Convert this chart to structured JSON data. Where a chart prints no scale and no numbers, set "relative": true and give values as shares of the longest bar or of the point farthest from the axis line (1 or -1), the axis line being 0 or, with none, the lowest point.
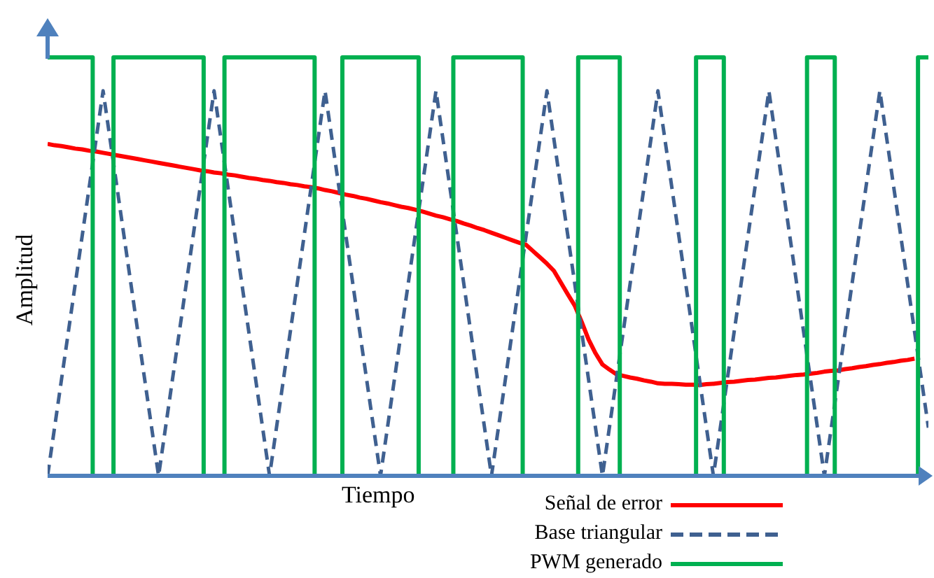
{
  "chart_data": {
    "type": "line",
    "relative": true,
    "xlabel": "Tiempo",
    "ylabel": "Amplitud",
    "legend": "bottom right",
    "categories": [
      null,
      null,
      null,
      null,
      null,
      null,
      null,
      null,
      null,
      null,
      null,
      null,
      null,
      null,
      null,
      null,
      null,
      null,
      null,
      null,
      null,
      null,
      null,
      null,
      null,
      null,
      null,
      null,
      null,
      null,
      null,
      null,
      null,
      null,
      null,
      null,
      null,
      null,
      null,
      null,
      null,
      null,
      null,
      null,
      null,
      null,
      null,
      null,
      null,
      null,
      null,
      null,
      null,
      null,
      null,
      null,
      null,
      null,
      null,
      null,
      null,
      null,
      null,
      null,
      null,
      null,
      null,
      null,
      null,
      null,
      null,
      null,
      null,
      null,
      null,
      null,
      null,
      null,
      null,
      null,
      null,
      null,
      null,
      null,
      null,
      null,
      null,
      null,
      null,
      null,
      null,
      null,
      null,
      null,
      null,
      null,
      null,
      null,
      null,
      null,
      null,
      null,
      null,
      null,
      null,
      null,
      null,
      null,
      null,
      null,
      null,
      null,
      null,
      null,
      null,
      null,
      null,
      null,
      null,
      null,
      null,
      null,
      null,
      null,
      null,
      null,
      null,
      null
    ],
    "series": [
      {
        "name": "Señal de error",
        "type": "line",
        "color": "#ff0000",
        "line_style": "solid",
        "values": [
          0.793,
          0.79,
          0.788,
          0.785,
          0.782,
          0.78,
          0.777,
          0.775,
          0.772,
          0.769,
          0.766,
          0.763,
          0.76,
          0.757,
          0.754,
          0.751,
          0.748,
          0.745,
          0.742,
          0.739,
          0.736,
          0.733,
          0.73,
          0.728,
          0.725,
          0.723,
          0.72,
          0.718,
          0.715,
          0.712,
          0.71,
          0.707,
          0.705,
          0.702,
          0.7,
          0.697,
          0.695,
          0.692,
          0.69,
          0.687,
          0.683,
          0.68,
          0.676,
          0.672,
          0.669,
          0.665,
          0.662,
          0.658,
          0.654,
          0.651,
          0.647,
          0.643,
          0.64,
          0.636,
          0.632,
          0.627,
          0.622,
          0.618,
          0.613,
          0.609,
          0.603,
          0.598,
          0.592,
          0.587,
          0.581,
          0.575,
          0.569,
          0.563,
          0.557,
          0.552,
          0.537,
          0.522,
          0.507,
          0.49,
          0.462,
          0.434,
          0.407,
          0.368,
          0.326,
          0.293,
          0.266,
          0.254,
          0.243,
          0.239,
          0.235,
          0.232,
          0.228,
          0.225,
          0.221,
          0.22,
          0.22,
          0.219,
          0.218,
          0.218,
          0.217,
          0.219,
          0.22,
          0.222,
          0.224,
          0.225,
          0.227,
          0.229,
          0.23,
          0.232,
          0.234,
          0.235,
          0.237,
          0.239,
          0.241,
          0.242,
          0.244,
          0.246,
          0.249,
          0.251,
          0.252,
          0.255,
          0.257,
          0.26,
          0.262,
          0.265,
          0.267,
          0.27,
          0.272,
          0.275,
          0.277,
          0.28,
          null,
          null
        ]
      },
      {
        "name": "Base triangular",
        "type": "line",
        "color": "#3f6090",
        "line_style": "dashed",
        "values": [
          0,
          0.115,
          0.23,
          0.345,
          0.46,
          0.575,
          0.69,
          0.805,
          0.92,
          0.805,
          0.69,
          0.575,
          0.46,
          0.345,
          0.23,
          0.115,
          0,
          0.115,
          0.23,
          0.345,
          0.46,
          0.575,
          0.69,
          0.805,
          0.92,
          0.805,
          0.69,
          0.575,
          0.46,
          0.345,
          0.23,
          0.115,
          0,
          0.115,
          0.23,
          0.345,
          0.46,
          0.575,
          0.69,
          0.805,
          0.92,
          0.805,
          0.69,
          0.575,
          0.46,
          0.345,
          0.23,
          0.115,
          0,
          0.115,
          0.23,
          0.345,
          0.46,
          0.575,
          0.69,
          0.805,
          0.92,
          0.805,
          0.69,
          0.575,
          0.46,
          0.345,
          0.23,
          0.115,
          0,
          0.115,
          0.23,
          0.345,
          0.46,
          0.575,
          0.69,
          0.805,
          0.92,
          0.805,
          0.69,
          0.575,
          0.46,
          0.345,
          0.23,
          0.115,
          0,
          0.115,
          0.23,
          0.345,
          0.46,
          0.575,
          0.69,
          0.805,
          0.92,
          0.805,
          0.69,
          0.575,
          0.46,
          0.345,
          0.23,
          0.115,
          0,
          0.115,
          0.23,
          0.345,
          0.46,
          0.575,
          0.69,
          0.805,
          0.92,
          0.805,
          0.69,
          0.575,
          0.46,
          0.345,
          0.23,
          0.115,
          0,
          0.115,
          0.23,
          0.345,
          0.46,
          0.575,
          0.69,
          0.805,
          0.92,
          0.805,
          0.69,
          0.575,
          0.46,
          0.345,
          0.23,
          0.115
        ]
      },
      {
        "name": "PWM generado",
        "type": "step",
        "color": "#00b050",
        "line_style": "solid",
        "values": [
          1,
          1,
          1,
          1,
          1,
          1,
          1,
          0,
          0,
          0,
          1,
          1,
          1,
          1,
          1,
          1,
          1,
          1,
          1,
          1,
          1,
          1,
          1,
          0,
          0,
          0,
          1,
          1,
          1,
          1,
          1,
          1,
          1,
          1,
          1,
          1,
          1,
          1,
          1,
          0,
          0,
          0,
          0,
          1,
          1,
          1,
          1,
          1,
          1,
          1,
          1,
          1,
          1,
          1,
          0,
          0,
          0,
          0,
          0,
          1,
          1,
          1,
          1,
          1,
          1,
          1,
          1,
          1,
          1,
          0,
          0,
          0,
          0,
          0,
          0,
          0,
          0,
          1,
          1,
          1,
          1,
          1,
          1,
          0,
          0,
          0,
          0,
          0,
          0,
          0,
          0,
          0,
          0,
          0,
          1,
          1,
          1,
          1,
          0,
          0,
          0,
          0,
          0,
          0,
          0,
          0,
          0,
          0,
          0,
          0,
          1,
          1,
          1,
          1,
          0,
          0,
          0,
          0,
          0,
          0,
          0,
          0,
          0,
          0,
          0,
          0,
          1,
          1
        ]
      }
    ]
  }
}
